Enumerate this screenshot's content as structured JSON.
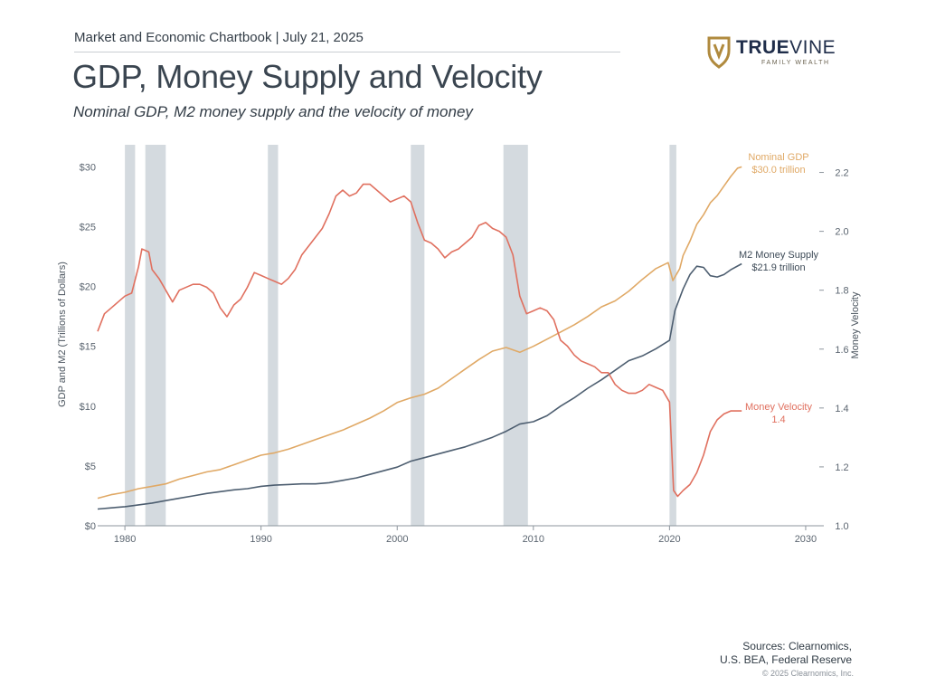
{
  "header": {
    "chartbook": "Market and Economic Chartbook | July 21, 2025",
    "title": "GDP, Money Supply and Velocity",
    "subtitle": "Nominal GDP, M2 money supply and the velocity of money"
  },
  "logo": {
    "brand_bold": "TRUE",
    "brand_rest": "VINE",
    "tagline": "FAMILY WEALTH",
    "colors": {
      "shield": "#b08a3e",
      "text": "#1f2d4a"
    }
  },
  "footer": {
    "source_line1": "Sources: Clearnomics,",
    "source_line2": "U.S. BEA, Federal Reserve",
    "copyright": "© 2025 Clearnomics, Inc."
  },
  "chart_data": {
    "type": "line",
    "xlim": [
      1978,
      2031
    ],
    "x_ticks": [
      1980,
      1990,
      2000,
      2010,
      2020,
      2030
    ],
    "y_left": {
      "label": "GDP and M2 (Trillions of Dollars)",
      "lim": [
        0,
        32
      ],
      "ticks": [
        0,
        5,
        10,
        15,
        20,
        25,
        30
      ],
      "tick_labels": [
        "$0",
        "$5",
        "$10",
        "$15",
        "$20",
        "$25",
        "$30"
      ]
    },
    "y_right": {
      "label": "Money Velocity",
      "lim": [
        1.0,
        2.3
      ],
      "ticks": [
        1.0,
        1.2,
        1.4,
        1.6,
        1.8,
        2.0,
        2.2
      ],
      "tick_labels": [
        "1.0",
        "1.2",
        "1.4",
        "1.6",
        "1.8",
        "2.0",
        "2.2"
      ]
    },
    "recessions": [
      [
        1980.0,
        1980.75
      ],
      [
        1981.5,
        1983.0
      ],
      [
        1990.5,
        1991.25
      ],
      [
        2001.0,
        2002.0
      ],
      [
        2007.8,
        2009.6
      ],
      [
        2020.0,
        2020.5
      ]
    ],
    "grid": false,
    "series": [
      {
        "name": "Nominal GDP",
        "axis": "left",
        "color": "#e0a966",
        "label_line1": "Nominal GDP",
        "label_line2": "$30.0 trillion",
        "points": [
          [
            1978,
            2.3
          ],
          [
            1979,
            2.6
          ],
          [
            1980,
            2.8
          ],
          [
            1981,
            3.1
          ],
          [
            1982,
            3.3
          ],
          [
            1983,
            3.5
          ],
          [
            1984,
            3.9
          ],
          [
            1985,
            4.2
          ],
          [
            1986,
            4.5
          ],
          [
            1987,
            4.7
          ],
          [
            1988,
            5.1
          ],
          [
            1989,
            5.5
          ],
          [
            1990,
            5.9
          ],
          [
            1991,
            6.1
          ],
          [
            1992,
            6.4
          ],
          [
            1993,
            6.8
          ],
          [
            1994,
            7.2
          ],
          [
            1995,
            7.6
          ],
          [
            1996,
            8.0
          ],
          [
            1997,
            8.5
          ],
          [
            1998,
            9.0
          ],
          [
            1999,
            9.6
          ],
          [
            2000,
            10.3
          ],
          [
            2001,
            10.7
          ],
          [
            2002,
            11.0
          ],
          [
            2003,
            11.5
          ],
          [
            2004,
            12.3
          ],
          [
            2005,
            13.1
          ],
          [
            2006,
            13.9
          ],
          [
            2007,
            14.6
          ],
          [
            2008,
            14.9
          ],
          [
            2009,
            14.5
          ],
          [
            2010,
            15.0
          ],
          [
            2011,
            15.6
          ],
          [
            2012,
            16.2
          ],
          [
            2013,
            16.8
          ],
          [
            2014,
            17.5
          ],
          [
            2015,
            18.3
          ],
          [
            2016,
            18.8
          ],
          [
            2017,
            19.6
          ],
          [
            2018,
            20.6
          ],
          [
            2019,
            21.5
          ],
          [
            2019.9,
            22.0
          ],
          [
            2020.25,
            20.5
          ],
          [
            2020.75,
            21.5
          ],
          [
            2021,
            22.6
          ],
          [
            2021.5,
            23.8
          ],
          [
            2022,
            25.2
          ],
          [
            2022.5,
            26.0
          ],
          [
            2023,
            27.0
          ],
          [
            2023.5,
            27.6
          ],
          [
            2024,
            28.4
          ],
          [
            2024.5,
            29.2
          ],
          [
            2025,
            29.9
          ],
          [
            2025.3,
            30.0
          ]
        ]
      },
      {
        "name": "M2 Money Supply",
        "axis": "left",
        "color": "#4d5e70",
        "label_line1": "M2 Money Supply",
        "label_line2": "$21.9 trillion",
        "points": [
          [
            1978,
            1.4
          ],
          [
            1979,
            1.5
          ],
          [
            1980,
            1.6
          ],
          [
            1981,
            1.75
          ],
          [
            1982,
            1.9
          ],
          [
            1983,
            2.1
          ],
          [
            1984,
            2.3
          ],
          [
            1985,
            2.5
          ],
          [
            1986,
            2.7
          ],
          [
            1987,
            2.85
          ],
          [
            1988,
            3.0
          ],
          [
            1989,
            3.1
          ],
          [
            1990,
            3.3
          ],
          [
            1991,
            3.4
          ],
          [
            1992,
            3.45
          ],
          [
            1993,
            3.5
          ],
          [
            1994,
            3.5
          ],
          [
            1995,
            3.6
          ],
          [
            1996,
            3.8
          ],
          [
            1997,
            4.0
          ],
          [
            1998,
            4.3
          ],
          [
            1999,
            4.6
          ],
          [
            2000,
            4.9
          ],
          [
            2001,
            5.4
          ],
          [
            2002,
            5.7
          ],
          [
            2003,
            6.0
          ],
          [
            2004,
            6.3
          ],
          [
            2005,
            6.6
          ],
          [
            2006,
            7.0
          ],
          [
            2007,
            7.4
          ],
          [
            2008,
            7.9
          ],
          [
            2009,
            8.5
          ],
          [
            2010,
            8.7
          ],
          [
            2011,
            9.2
          ],
          [
            2012,
            10.0
          ],
          [
            2013,
            10.7
          ],
          [
            2014,
            11.5
          ],
          [
            2015,
            12.2
          ],
          [
            2016,
            13.0
          ],
          [
            2017,
            13.8
          ],
          [
            2018,
            14.2
          ],
          [
            2019,
            14.8
          ],
          [
            2020,
            15.5
          ],
          [
            2020.4,
            18.0
          ],
          [
            2021,
            19.8
          ],
          [
            2021.5,
            21.0
          ],
          [
            2022,
            21.7
          ],
          [
            2022.5,
            21.6
          ],
          [
            2023,
            20.9
          ],
          [
            2023.5,
            20.8
          ],
          [
            2024,
            21.0
          ],
          [
            2024.5,
            21.4
          ],
          [
            2025.3,
            21.9
          ]
        ]
      },
      {
        "name": "Money Velocity",
        "axis": "right",
        "color": "#e0705f",
        "label_line1": "Money Velocity",
        "label_line2": "1.4",
        "points": [
          [
            1978,
            1.66
          ],
          [
            1978.5,
            1.72
          ],
          [
            1979,
            1.74
          ],
          [
            1979.5,
            1.76
          ],
          [
            1980,
            1.78
          ],
          [
            1980.5,
            1.79
          ],
          [
            1981,
            1.88
          ],
          [
            1981.25,
            1.94
          ],
          [
            1981.75,
            1.93
          ],
          [
            1982,
            1.87
          ],
          [
            1982.5,
            1.84
          ],
          [
            1983,
            1.8
          ],
          [
            1983.5,
            1.76
          ],
          [
            1984,
            1.8
          ],
          [
            1985,
            1.82
          ],
          [
            1985.5,
            1.82
          ],
          [
            1986,
            1.81
          ],
          [
            1986.5,
            1.79
          ],
          [
            1987,
            1.74
          ],
          [
            1987.5,
            1.71
          ],
          [
            1988,
            1.75
          ],
          [
            1988.5,
            1.77
          ],
          [
            1989,
            1.81
          ],
          [
            1989.5,
            1.86
          ],
          [
            1990,
            1.85
          ],
          [
            1990.5,
            1.84
          ],
          [
            1991,
            1.83
          ],
          [
            1991.5,
            1.82
          ],
          [
            1992,
            1.84
          ],
          [
            1992.5,
            1.87
          ],
          [
            1993,
            1.92
          ],
          [
            1994,
            1.98
          ],
          [
            1994.5,
            2.01
          ],
          [
            1995,
            2.06
          ],
          [
            1995.5,
            2.12
          ],
          [
            1996,
            2.14
          ],
          [
            1996.5,
            2.12
          ],
          [
            1997,
            2.13
          ],
          [
            1997.5,
            2.16
          ],
          [
            1998,
            2.16
          ],
          [
            1998.5,
            2.14
          ],
          [
            1999,
            2.12
          ],
          [
            1999.5,
            2.1
          ],
          [
            2000,
            2.11
          ],
          [
            2000.5,
            2.12
          ],
          [
            2001,
            2.1
          ],
          [
            2001.5,
            2.03
          ],
          [
            2002,
            1.97
          ],
          [
            2002.5,
            1.96
          ],
          [
            2003,
            1.94
          ],
          [
            2003.5,
            1.91
          ],
          [
            2004,
            1.93
          ],
          [
            2004.5,
            1.94
          ],
          [
            2005,
            1.96
          ],
          [
            2005.5,
            1.98
          ],
          [
            2006,
            2.02
          ],
          [
            2006.5,
            2.03
          ],
          [
            2007,
            2.01
          ],
          [
            2007.5,
            2.0
          ],
          [
            2008,
            1.98
          ],
          [
            2008.5,
            1.92
          ],
          [
            2009,
            1.78
          ],
          [
            2009.5,
            1.72
          ],
          [
            2010,
            1.73
          ],
          [
            2010.5,
            1.74
          ],
          [
            2011,
            1.73
          ],
          [
            2011.5,
            1.7
          ],
          [
            2012,
            1.63
          ],
          [
            2012.5,
            1.61
          ],
          [
            2013,
            1.58
          ],
          [
            2013.5,
            1.56
          ],
          [
            2014,
            1.55
          ],
          [
            2014.5,
            1.54
          ],
          [
            2015,
            1.52
          ],
          [
            2015.5,
            1.52
          ],
          [
            2016,
            1.48
          ],
          [
            2016.5,
            1.46
          ],
          [
            2017,
            1.45
          ],
          [
            2017.5,
            1.45
          ],
          [
            2018,
            1.46
          ],
          [
            2018.5,
            1.48
          ],
          [
            2019,
            1.47
          ],
          [
            2019.5,
            1.46
          ],
          [
            2020,
            1.42
          ],
          [
            2020.3,
            1.12
          ],
          [
            2020.6,
            1.1
          ],
          [
            2021,
            1.12
          ],
          [
            2021.5,
            1.14
          ],
          [
            2022,
            1.18
          ],
          [
            2022.5,
            1.24
          ],
          [
            2023,
            1.32
          ],
          [
            2023.5,
            1.36
          ],
          [
            2024,
            1.38
          ],
          [
            2024.5,
            1.39
          ],
          [
            2025.3,
            1.39
          ]
        ]
      }
    ]
  }
}
